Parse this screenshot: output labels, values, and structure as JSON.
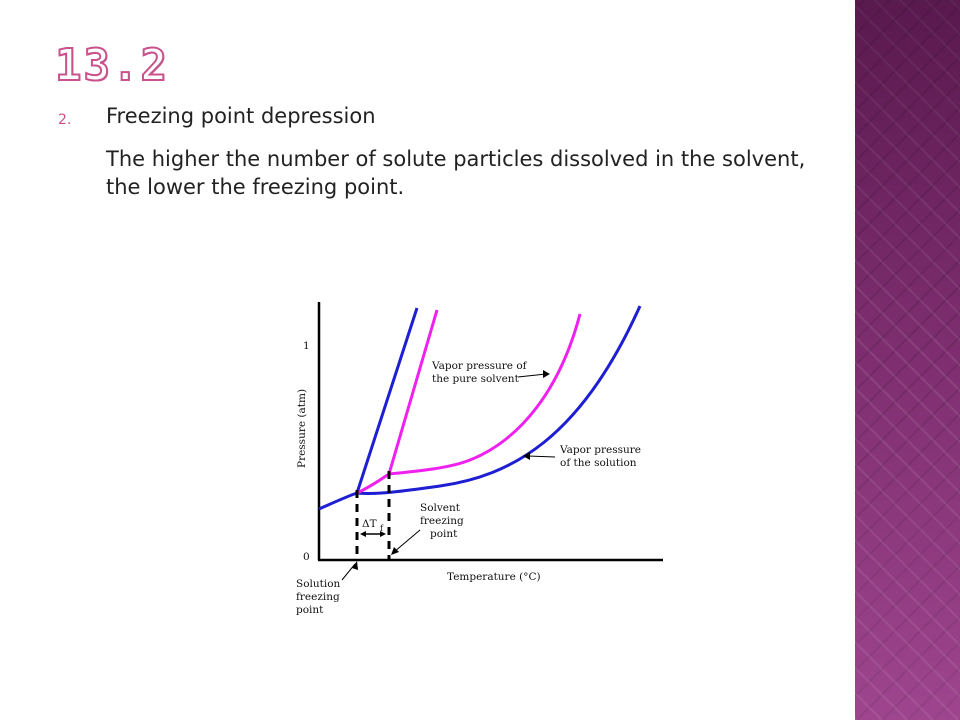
{
  "slide": {
    "title": "13.2",
    "list_number": "2.",
    "heading": "Freezing point depression",
    "body": "The higher the number of solute particles dissolved in the solvent, the lower the freezing point."
  },
  "diagram": {
    "y_axis_label": "Pressure (atm)",
    "x_axis_label": "Temperature (°C)",
    "y_tick_1": "1",
    "y_tick_0": "0",
    "label_pure_line1": "Vapor pressure of",
    "label_pure_line2": "the pure solvent",
    "label_solution_line1": "Vapor pressure",
    "label_solution_line2": "of the solution",
    "label_solvent_fp_line1": "Solvent",
    "label_solvent_fp_line2": "freezing",
    "label_solvent_fp_line3": "point",
    "label_solution_fp_line1": "Solution",
    "label_solution_fp_line2": "freezing",
    "label_solution_fp_line3": "point",
    "delta_t_symbol": "ΔT",
    "delta_t_subscript": "f",
    "colors": {
      "solution_curve": "#1e1ed2",
      "pure_solvent_curve": "#f020f0",
      "axes": "#000000"
    }
  }
}
